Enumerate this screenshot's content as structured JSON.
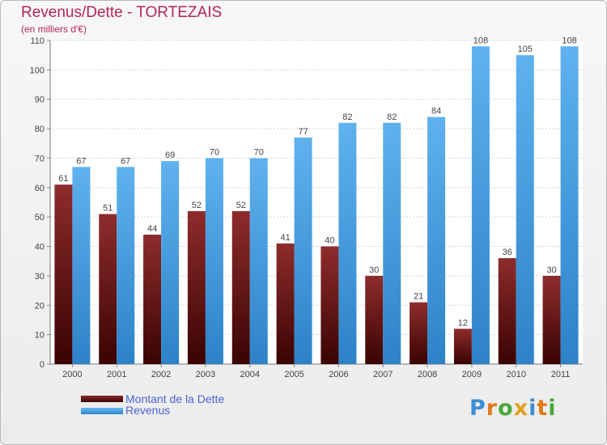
{
  "title": "Revenus/Dette - TORTEZAIS",
  "subtitle": "(en milliers d'€)",
  "colors": {
    "dette": "#7a1a1a",
    "revenus": "#4aa0e0",
    "title": "#b5245a",
    "legend_text": "#4a64d6"
  },
  "legend": {
    "dette_label": "Montant de la Dette",
    "revenus_label": "Revenus"
  },
  "logo": {
    "text": "Proxiti"
  },
  "chart_data": {
    "type": "bar",
    "title": "Revenus/Dette - TORTEZAIS",
    "subtitle": "(en milliers d'€)",
    "categories": [
      "2000",
      "2001",
      "2002",
      "2003",
      "2004",
      "2005",
      "2006",
      "2007",
      "2008",
      "2009",
      "2010",
      "2011"
    ],
    "series": [
      {
        "name": "Montant de la Dette",
        "values": [
          61,
          51,
          44,
          52,
          52,
          41,
          40,
          30,
          21,
          12,
          36,
          30
        ]
      },
      {
        "name": "Revenus",
        "values": [
          67,
          67,
          69,
          70,
          70,
          77,
          82,
          82,
          84,
          108,
          105,
          108
        ]
      }
    ],
    "ylim": [
      0,
      110
    ],
    "yticks": [
      0,
      10,
      20,
      30,
      40,
      50,
      60,
      70,
      80,
      90,
      100,
      110
    ],
    "grid": true,
    "legend_position": "bottom-left"
  }
}
